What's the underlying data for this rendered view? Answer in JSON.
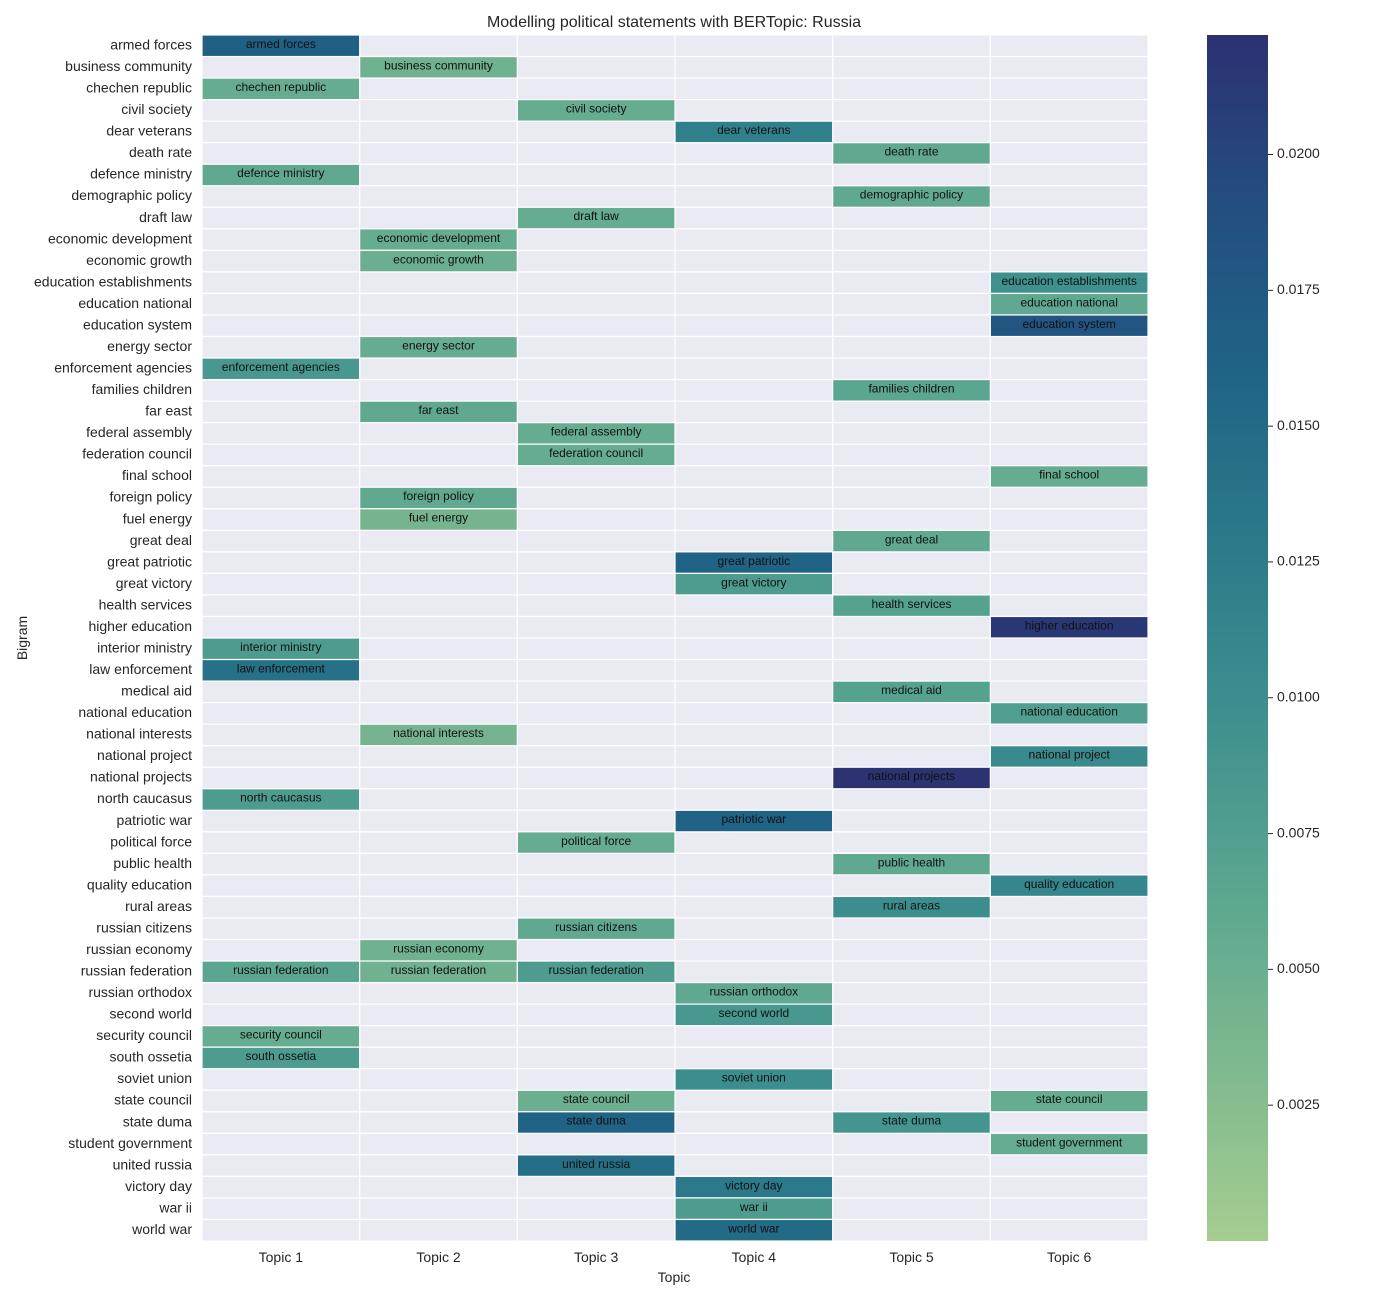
{
  "chart_data": {
    "type": "heatmap",
    "title": "Modelling political statements with BERTopic: Russia",
    "xlabel": "Topic",
    "ylabel": "Bigram",
    "x_categories": [
      "Topic 1",
      "Topic 2",
      "Topic 3",
      "Topic 4",
      "Topic 5",
      "Topic 6"
    ],
    "y_categories": [
      "armed forces",
      "business community",
      "chechen republic",
      "civil society",
      "dear veterans",
      "death rate",
      "defence ministry",
      "demographic policy",
      "draft law",
      "economic development",
      "economic growth",
      "education establishments",
      "education national",
      "education system",
      "energy sector",
      "enforcement agencies",
      "families children",
      "far east",
      "federal assembly",
      "federation council",
      "final school",
      "foreign policy",
      "fuel energy",
      "great deal",
      "great patriotic",
      "great victory",
      "health services",
      "higher education",
      "interior ministry",
      "law enforcement",
      "medical aid",
      "national education",
      "national interests",
      "national project",
      "national projects",
      "north caucasus",
      "patriotic war",
      "political force",
      "public health",
      "quality education",
      "rural areas",
      "russian citizens",
      "russian economy",
      "russian federation",
      "russian orthodox",
      "second world",
      "security council",
      "south ossetia",
      "soviet union",
      "state council",
      "state duma",
      "student government",
      "united russia",
      "victory day",
      "war ii",
      "world war"
    ],
    "cells": [
      {
        "bigram": "armed forces",
        "topic": "Topic 1",
        "value": 0.0165
      },
      {
        "bigram": "business community",
        "topic": "Topic 2",
        "value": 0.0045
      },
      {
        "bigram": "chechen republic",
        "topic": "Topic 1",
        "value": 0.0055
      },
      {
        "bigram": "civil society",
        "topic": "Topic 3",
        "value": 0.0055
      },
      {
        "bigram": "dear veterans",
        "topic": "Topic 4",
        "value": 0.012
      },
      {
        "bigram": "death rate",
        "topic": "Topic 5",
        "value": 0.006
      },
      {
        "bigram": "defence ministry",
        "topic": "Topic 1",
        "value": 0.006
      },
      {
        "bigram": "demographic policy",
        "topic": "Topic 5",
        "value": 0.006
      },
      {
        "bigram": "draft law",
        "topic": "Topic 3",
        "value": 0.0055
      },
      {
        "bigram": "economic development",
        "topic": "Topic 2",
        "value": 0.0055
      },
      {
        "bigram": "economic growth",
        "topic": "Topic 2",
        "value": 0.005
      },
      {
        "bigram": "education establishments",
        "topic": "Topic 6",
        "value": 0.0095
      },
      {
        "bigram": "education national",
        "topic": "Topic 6",
        "value": 0.006
      },
      {
        "bigram": "education system",
        "topic": "Topic 6",
        "value": 0.018
      },
      {
        "bigram": "energy sector",
        "topic": "Topic 2",
        "value": 0.0055
      },
      {
        "bigram": "enforcement agencies",
        "topic": "Topic 1",
        "value": 0.0085
      },
      {
        "bigram": "families children",
        "topic": "Topic 5",
        "value": 0.0065
      },
      {
        "bigram": "far east",
        "topic": "Topic 2",
        "value": 0.006
      },
      {
        "bigram": "federal assembly",
        "topic": "Topic 3",
        "value": 0.0055
      },
      {
        "bigram": "federation council",
        "topic": "Topic 3",
        "value": 0.0055
      },
      {
        "bigram": "final school",
        "topic": "Topic 6",
        "value": 0.0055
      },
      {
        "bigram": "foreign policy",
        "topic": "Topic 2",
        "value": 0.006
      },
      {
        "bigram": "fuel energy",
        "topic": "Topic 2",
        "value": 0.004
      },
      {
        "bigram": "great deal",
        "topic": "Topic 5",
        "value": 0.006
      },
      {
        "bigram": "great patriotic",
        "topic": "Topic 4",
        "value": 0.016
      },
      {
        "bigram": "great victory",
        "topic": "Topic 4",
        "value": 0.008
      },
      {
        "bigram": "health services",
        "topic": "Topic 5",
        "value": 0.007
      },
      {
        "bigram": "higher education",
        "topic": "Topic 6",
        "value": 0.0215
      },
      {
        "bigram": "interior ministry",
        "topic": "Topic 1",
        "value": 0.008
      },
      {
        "bigram": "law enforcement",
        "topic": "Topic 1",
        "value": 0.014
      },
      {
        "bigram": "medical aid",
        "topic": "Topic 5",
        "value": 0.007
      },
      {
        "bigram": "national education",
        "topic": "Topic 6",
        "value": 0.0075
      },
      {
        "bigram": "national interests",
        "topic": "Topic 2",
        "value": 0.004
      },
      {
        "bigram": "national project",
        "topic": "Topic 6",
        "value": 0.0105
      },
      {
        "bigram": "national projects",
        "topic": "Topic 5",
        "value": 0.022
      },
      {
        "bigram": "north caucasus",
        "topic": "Topic 1",
        "value": 0.008
      },
      {
        "bigram": "patriotic war",
        "topic": "Topic 4",
        "value": 0.016
      },
      {
        "bigram": "political force",
        "topic": "Topic 3",
        "value": 0.0055
      },
      {
        "bigram": "public health",
        "topic": "Topic 5",
        "value": 0.006
      },
      {
        "bigram": "quality education",
        "topic": "Topic 6",
        "value": 0.011
      },
      {
        "bigram": "rural areas",
        "topic": "Topic 5",
        "value": 0.01
      },
      {
        "bigram": "russian citizens",
        "topic": "Topic 3",
        "value": 0.006
      },
      {
        "bigram": "russian economy",
        "topic": "Topic 2",
        "value": 0.0045
      },
      {
        "bigram": "russian federation",
        "topic": "Topic 1",
        "value": 0.0065
      },
      {
        "bigram": "russian federation",
        "topic": "Topic 2",
        "value": 0.0045
      },
      {
        "bigram": "russian federation",
        "topic": "Topic 3",
        "value": 0.008
      },
      {
        "bigram": "russian orthodox",
        "topic": "Topic 4",
        "value": 0.006
      },
      {
        "bigram": "second world",
        "topic": "Topic 4",
        "value": 0.0085
      },
      {
        "bigram": "security council",
        "topic": "Topic 1",
        "value": 0.0055
      },
      {
        "bigram": "south ossetia",
        "topic": "Topic 1",
        "value": 0.008
      },
      {
        "bigram": "soviet union",
        "topic": "Topic 4",
        "value": 0.01
      },
      {
        "bigram": "state council",
        "topic": "Topic 3",
        "value": 0.005
      },
      {
        "bigram": "state council",
        "topic": "Topic 6",
        "value": 0.0055
      },
      {
        "bigram": "state duma",
        "topic": "Topic 3",
        "value": 0.016
      },
      {
        "bigram": "state duma",
        "topic": "Topic 5",
        "value": 0.009
      },
      {
        "bigram": "student government",
        "topic": "Topic 6",
        "value": 0.0055
      },
      {
        "bigram": "united russia",
        "topic": "Topic 3",
        "value": 0.0145
      },
      {
        "bigram": "victory day",
        "topic": "Topic 4",
        "value": 0.013
      },
      {
        "bigram": "war ii",
        "topic": "Topic 4",
        "value": 0.008
      },
      {
        "bigram": "world war",
        "topic": "Topic 4",
        "value": 0.015
      }
    ],
    "colorbar": {
      "vmin": 0.0,
      "vmax": 0.0222,
      "ticks": [
        0.0025,
        0.005,
        0.0075,
        0.01,
        0.0125,
        0.015,
        0.0175,
        0.02
      ],
      "tick_labels": [
        "0.0025",
        "0.0050",
        "0.0075",
        "0.0100",
        "0.0125",
        "0.0150",
        "0.0175",
        "0.0200"
      ],
      "colormap": "crest",
      "stops": [
        "#a5cd90",
        "#7fb98f",
        "#5ca790",
        "#3f918f",
        "#2c7b8a",
        "#206486",
        "#234e80",
        "#2c3172"
      ]
    },
    "empty_color": "#eaeaf2",
    "grid": false
  }
}
